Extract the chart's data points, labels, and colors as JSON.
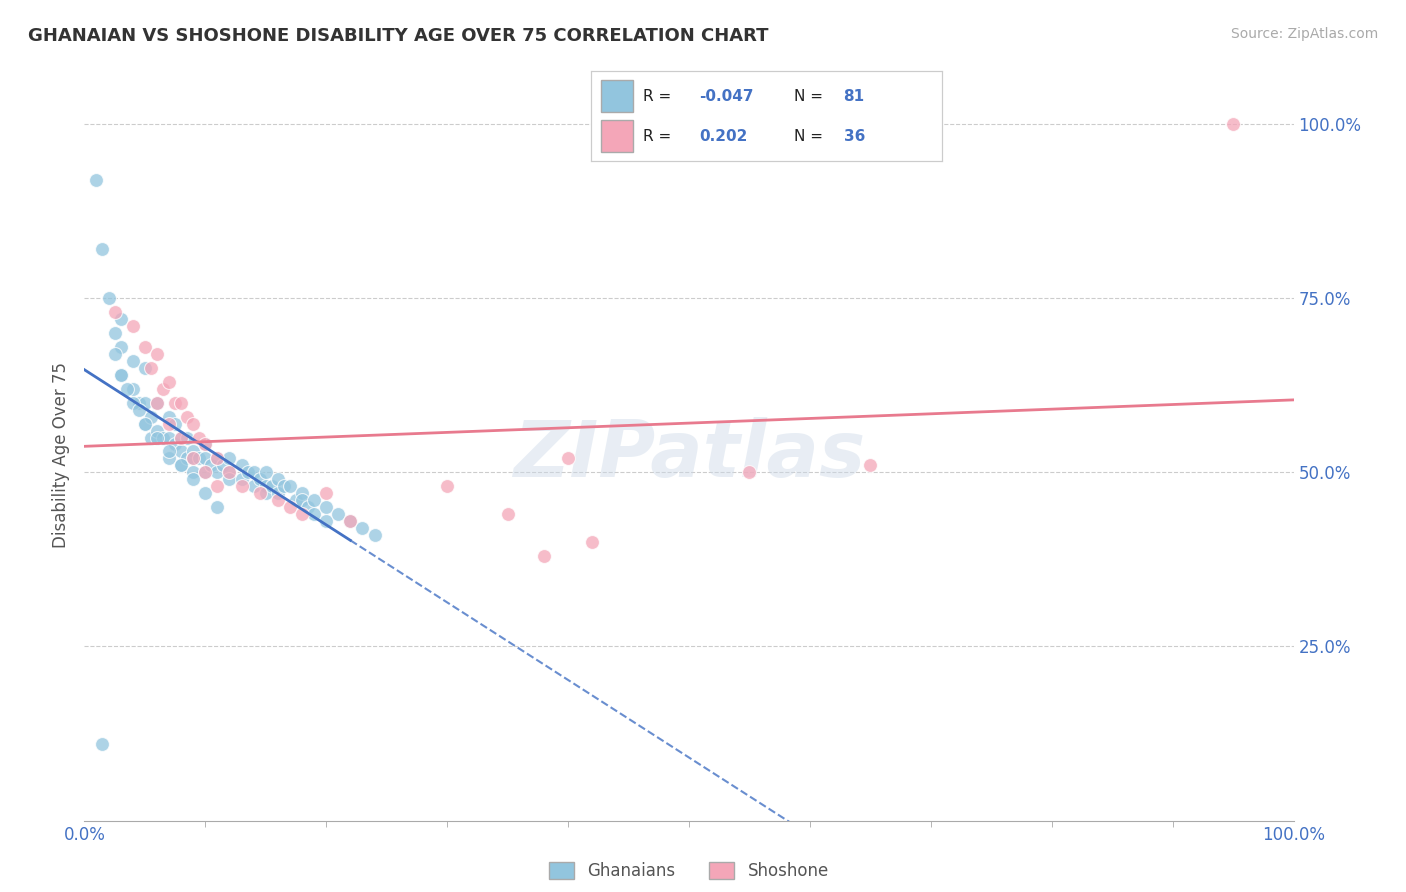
{
  "title": "GHANAIAN VS SHOSHONE DISABILITY AGE OVER 75 CORRELATION CHART",
  "source_text": "Source: ZipAtlas.com",
  "ylabel": "Disability Age Over 75",
  "xlim": [
    0.0,
    1.0
  ],
  "ylim": [
    0.0,
    1.05
  ],
  "x_tick_labels": [
    "0.0%",
    "100.0%"
  ],
  "y_ticks": [
    0.25,
    0.5,
    0.75,
    1.0
  ],
  "y_tick_labels": [
    "25.0%",
    "50.0%",
    "75.0%",
    "100.0%"
  ],
  "ghanaian_color": "#92c5de",
  "shoshone_color": "#f4a6b8",
  "blue_color": "#4472c4",
  "pink_color": "#e87a8e",
  "legend_blue_label": "Ghanaians",
  "legend_pink_label": "Shoshone",
  "watermark": "ZIPatlas",
  "ghanaian_R": "-0.047",
  "ghanaian_N": "81",
  "shoshone_R": "0.202",
  "shoshone_N": "36",
  "ghanaian_x": [
    0.01,
    0.015,
    0.02,
    0.025,
    0.03,
    0.03,
    0.03,
    0.04,
    0.04,
    0.045,
    0.05,
    0.05,
    0.05,
    0.055,
    0.055,
    0.06,
    0.06,
    0.065,
    0.07,
    0.07,
    0.07,
    0.075,
    0.075,
    0.08,
    0.08,
    0.08,
    0.085,
    0.085,
    0.09,
    0.09,
    0.09,
    0.095,
    0.1,
    0.1,
    0.1,
    0.105,
    0.11,
    0.11,
    0.115,
    0.12,
    0.12,
    0.12,
    0.13,
    0.13,
    0.135,
    0.14,
    0.14,
    0.145,
    0.15,
    0.15,
    0.15,
    0.155,
    0.16,
    0.16,
    0.165,
    0.17,
    0.175,
    0.18,
    0.18,
    0.185,
    0.19,
    0.19,
    0.2,
    0.2,
    0.21,
    0.22,
    0.23,
    0.24,
    0.025,
    0.03,
    0.035,
    0.04,
    0.045,
    0.05,
    0.06,
    0.07,
    0.08,
    0.09,
    0.1,
    0.11,
    0.015
  ],
  "ghanaian_y": [
    0.92,
    0.82,
    0.75,
    0.7,
    0.72,
    0.68,
    0.64,
    0.66,
    0.62,
    0.6,
    0.65,
    0.6,
    0.57,
    0.58,
    0.55,
    0.6,
    0.56,
    0.55,
    0.58,
    0.55,
    0.52,
    0.57,
    0.54,
    0.55,
    0.53,
    0.51,
    0.55,
    0.52,
    0.53,
    0.52,
    0.5,
    0.52,
    0.54,
    0.52,
    0.5,
    0.51,
    0.52,
    0.5,
    0.51,
    0.52,
    0.5,
    0.49,
    0.51,
    0.49,
    0.5,
    0.5,
    0.48,
    0.49,
    0.5,
    0.48,
    0.47,
    0.48,
    0.49,
    0.47,
    0.48,
    0.48,
    0.46,
    0.47,
    0.46,
    0.45,
    0.46,
    0.44,
    0.45,
    0.43,
    0.44,
    0.43,
    0.42,
    0.41,
    0.67,
    0.64,
    0.62,
    0.6,
    0.59,
    0.57,
    0.55,
    0.53,
    0.51,
    0.49,
    0.47,
    0.45,
    0.11
  ],
  "shoshone_x": [
    0.025,
    0.04,
    0.05,
    0.055,
    0.06,
    0.065,
    0.07,
    0.075,
    0.08,
    0.085,
    0.09,
    0.095,
    0.1,
    0.11,
    0.12,
    0.13,
    0.145,
    0.16,
    0.17,
    0.18,
    0.2,
    0.22,
    0.3,
    0.35,
    0.4,
    0.55,
    0.65,
    0.95,
    0.06,
    0.07,
    0.08,
    0.09,
    0.1,
    0.11,
    0.38,
    0.42
  ],
  "shoshone_y": [
    0.73,
    0.71,
    0.68,
    0.65,
    0.67,
    0.62,
    0.63,
    0.6,
    0.6,
    0.58,
    0.57,
    0.55,
    0.54,
    0.52,
    0.5,
    0.48,
    0.47,
    0.46,
    0.45,
    0.44,
    0.47,
    0.43,
    0.48,
    0.44,
    0.52,
    0.5,
    0.51,
    1.0,
    0.6,
    0.57,
    0.55,
    0.52,
    0.5,
    0.48,
    0.38,
    0.4
  ]
}
